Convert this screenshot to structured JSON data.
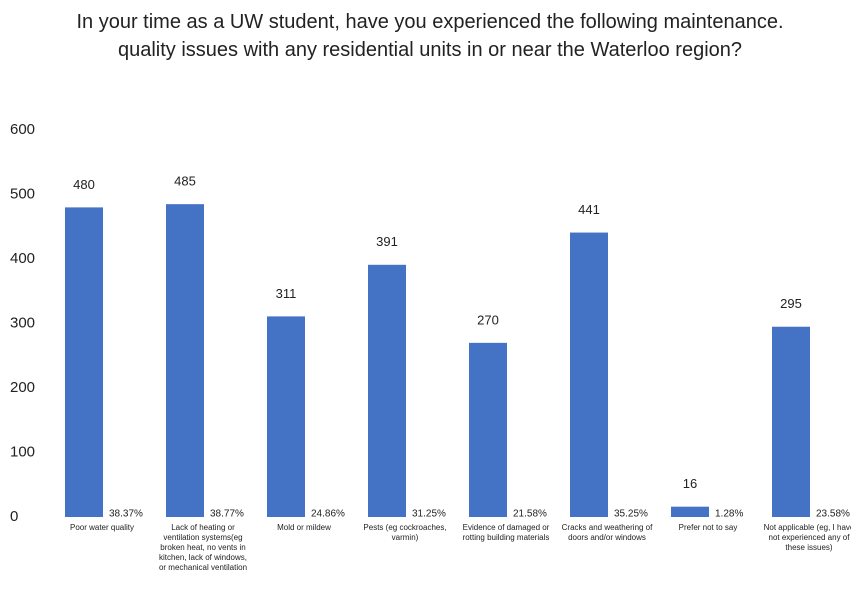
{
  "chart_data": {
    "type": "bar",
    "title": "In your time as a UW student, have you experienced the following maintenance. quality issues with any residential units in or near the Waterloo region?",
    "categories": [
      "Poor water quality",
      "Lack of heating or ventilation systems(eg broken heat, no vents in kitchen, lack of windows, or mechanical ventilation",
      "Mold or mildew",
      "Pests (eg cockroaches, varmin)",
      "Evidence of damaged or rotting building materials",
      "Cracks and weathering of doors and/or windows",
      "Prefer not to say",
      "Not applicable (eg, I have not experienced any of these issues)"
    ],
    "values": [
      480,
      485,
      311,
      391,
      270,
      441,
      16,
      295
    ],
    "percent_labels": [
      "38.37%",
      "38.77%",
      "24.86%",
      "31.25%",
      "21.58%",
      "35.25%",
      "1.28%",
      "23.58%"
    ],
    "color": "#4472c4",
    "ylim": [
      0,
      600
    ],
    "yticks": [
      0,
      100,
      200,
      300,
      400,
      500,
      600
    ],
    "grid": false
  }
}
